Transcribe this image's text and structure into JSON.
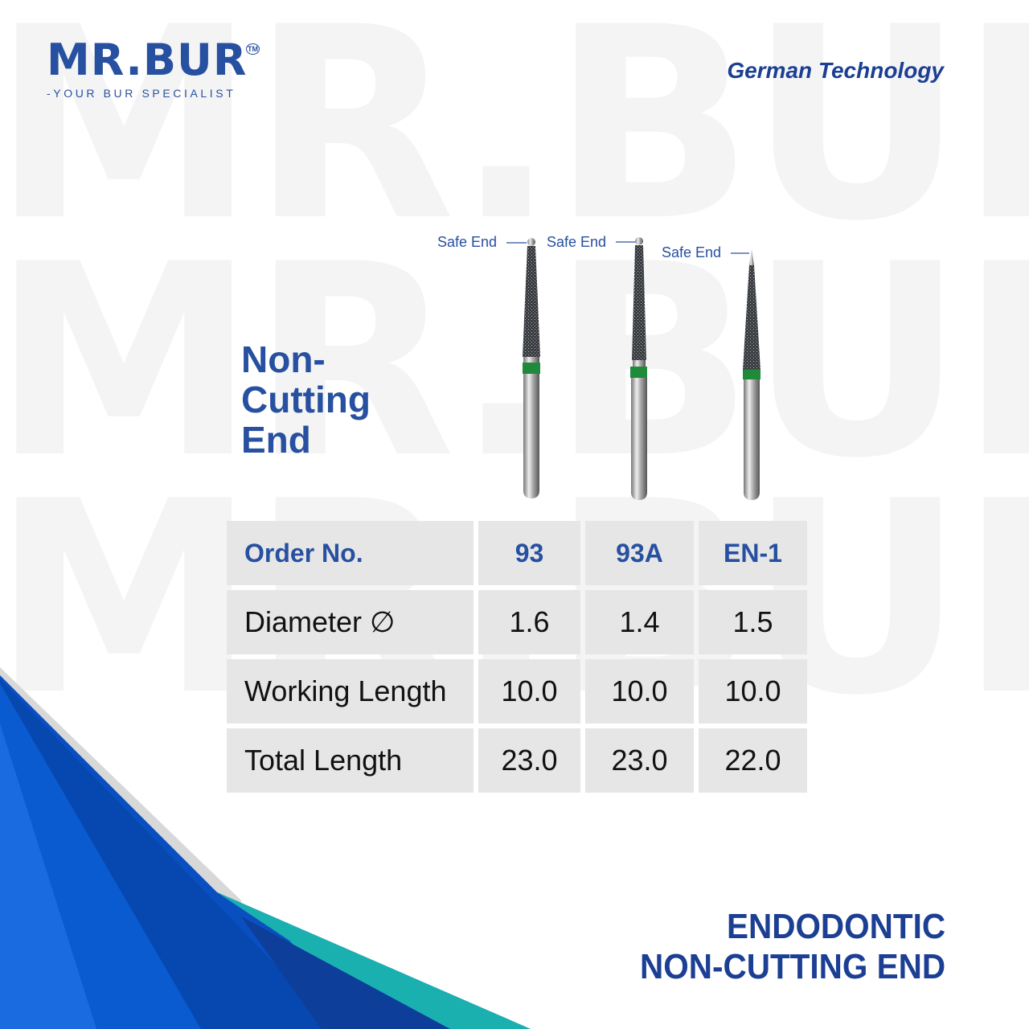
{
  "watermark": "MR.BUR",
  "logo": {
    "name": "MR.BUR",
    "trademark": "TM",
    "tagline": "-YOUR BUR SPECIALIST"
  },
  "tagline": "German Technology",
  "title": [
    "Non-",
    "Cutting",
    "End"
  ],
  "safe_end_label": "Safe End",
  "colors": {
    "brand_blue": "#2750a0",
    "band_green": "#1e8a3a",
    "cell_gray": "#e6e6e6"
  },
  "table": {
    "header": {
      "label": "Order No.",
      "values": [
        "93",
        "93A",
        "EN-1"
      ]
    },
    "rows": [
      {
        "label": "Diameter ∅",
        "values": [
          "1.6",
          "1.4",
          "1.5"
        ]
      },
      {
        "label": "Working Length",
        "values": [
          "10.0",
          "10.0",
          "10.0"
        ]
      },
      {
        "label": "Total Length",
        "values": [
          "23.0",
          "23.0",
          "22.0"
        ]
      }
    ]
  },
  "footer": {
    "line1": "ENDODONTIC",
    "line2": "NON-CUTTING END"
  }
}
